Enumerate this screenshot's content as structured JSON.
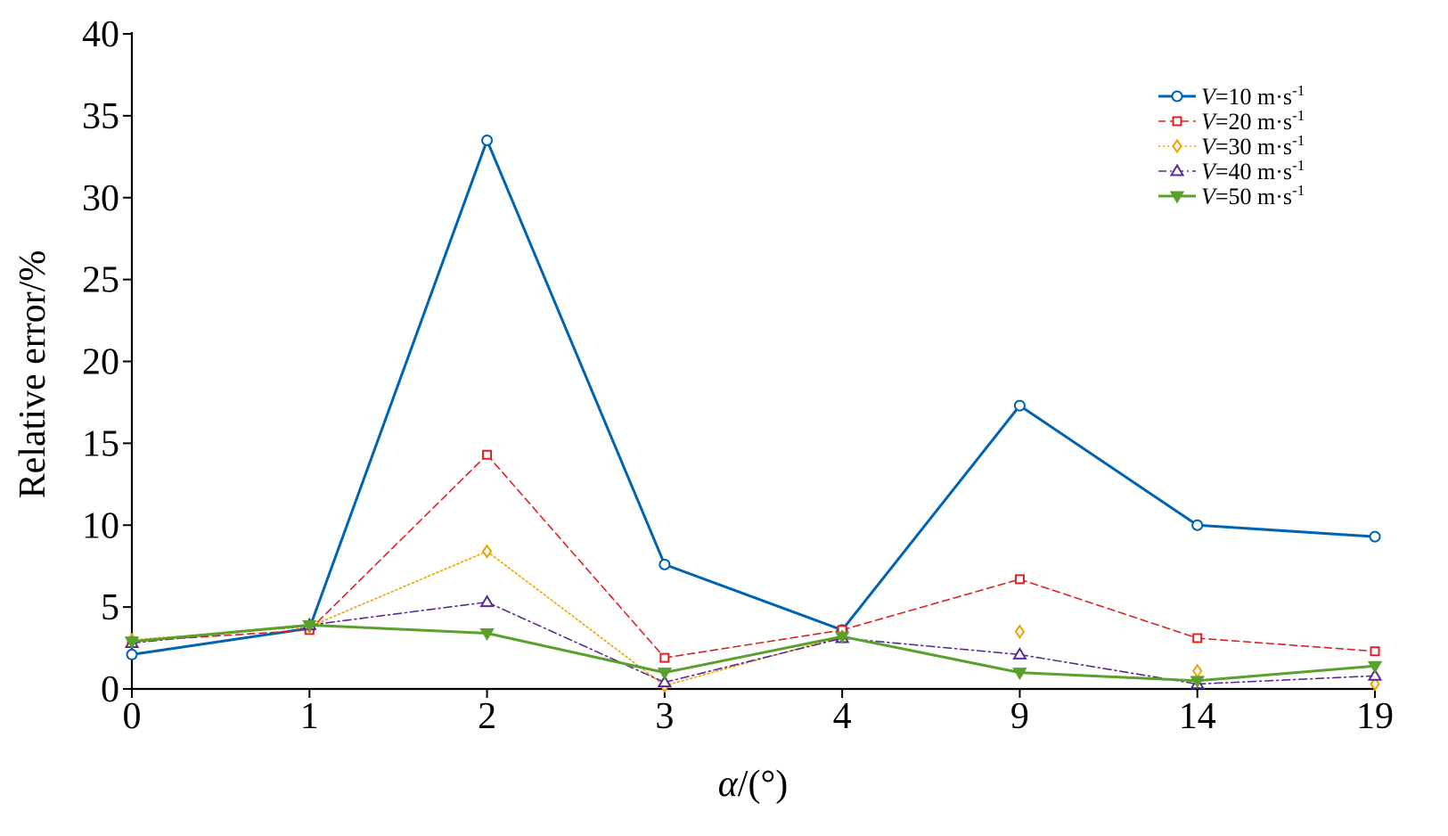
{
  "chart_data": {
    "type": "line",
    "title": "",
    "xlabel": {
      "symbol": "α",
      "unit": "/(°)"
    },
    "ylabel": "Relative error/%",
    "x": [
      "0",
      "1",
      "2",
      "3",
      "4",
      "9",
      "14",
      "19"
    ],
    "ylim": [
      0,
      40
    ],
    "yticks": [
      0,
      5,
      10,
      15,
      20,
      25,
      30,
      35,
      40
    ],
    "grid": false,
    "legend": "top-right",
    "series": [
      {
        "name": "V=10 m·s-1",
        "label": {
          "var": "V",
          "rest": "=10 m·s",
          "exp": "-1"
        },
        "color": "#0063b1",
        "line_style": "solid",
        "marker": "circle",
        "connected": [
          true,
          true,
          true,
          true,
          true,
          true,
          true
        ],
        "values": [
          2.1,
          3.7,
          33.5,
          7.6,
          3.6,
          17.3,
          10.0,
          9.3
        ]
      },
      {
        "name": "V=20 m·s-1",
        "label": {
          "var": "V",
          "rest": "=20 m·s",
          "exp": "-1"
        },
        "color": "#e02020",
        "line_style": "dashed",
        "marker": "square",
        "connected": [
          true,
          true,
          true,
          true,
          true,
          true,
          true
        ],
        "values": [
          2.9,
          3.6,
          14.3,
          1.9,
          3.6,
          6.7,
          3.1,
          2.3
        ]
      },
      {
        "name": "V=30 m·s-1",
        "label": {
          "var": "V",
          "rest": "=30 m·s",
          "exp": "-1"
        },
        "color": "#f0a000",
        "line_style": "dotted",
        "marker": "diamond",
        "connected": [
          true,
          true,
          true,
          true,
          false,
          false,
          false
        ],
        "values": [
          3.0,
          3.8,
          8.4,
          0.2,
          3.2,
          3.5,
          1.1,
          0.3
        ]
      },
      {
        "name": "V=40 m·s-1",
        "label": {
          "var": "V",
          "rest": "=40 m·s",
          "exp": "-1"
        },
        "color": "#5a2a91",
        "line_style": "dashdot",
        "marker": "triangle-up",
        "connected": [
          true,
          true,
          true,
          true,
          true,
          true,
          true
        ],
        "values": [
          2.8,
          3.9,
          5.3,
          0.4,
          3.1,
          2.1,
          0.3,
          0.8
        ]
      },
      {
        "name": "V=50 m·s-1",
        "label": {
          "var": "V",
          "rest": "=50 m·s",
          "exp": "-1"
        },
        "color": "#5aa02c",
        "line_style": "solid",
        "marker": "triangle-down",
        "connected": [
          true,
          true,
          true,
          true,
          true,
          true,
          true
        ],
        "values": [
          2.9,
          3.9,
          3.4,
          1.0,
          3.2,
          1.0,
          0.5,
          1.4
        ]
      }
    ]
  }
}
